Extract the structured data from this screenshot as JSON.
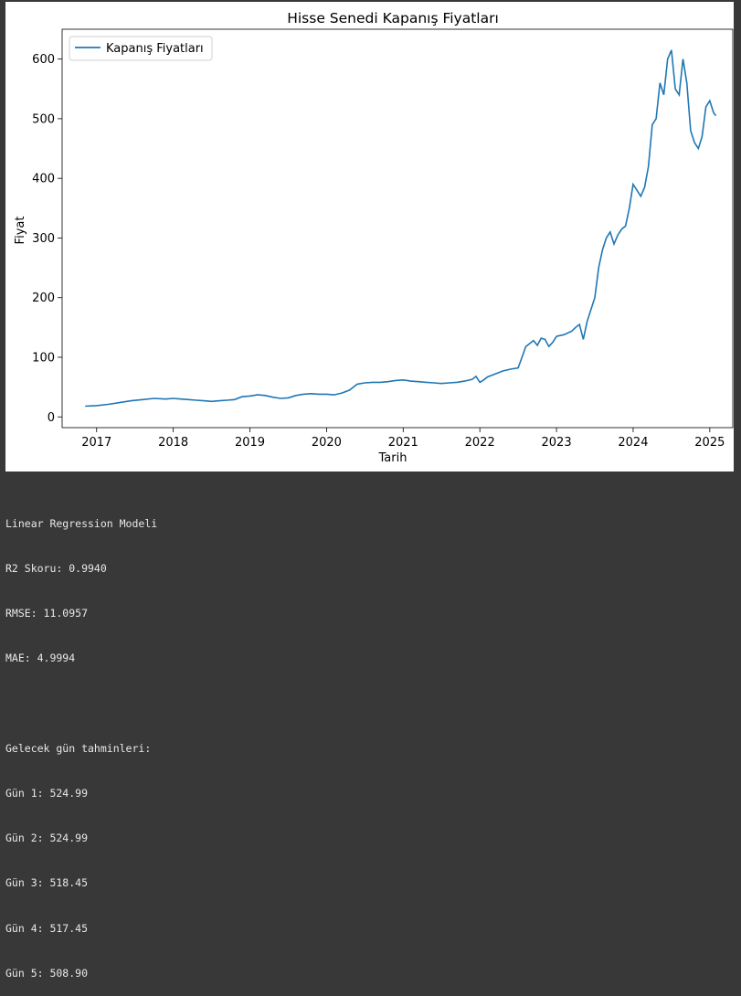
{
  "chart_data": {
    "type": "line",
    "title": "Hisse Senedi Kapanış Fiyatları",
    "xlabel": "Tarih",
    "ylabel": "Fiyat",
    "xlim": [
      2016.55,
      2025.3
    ],
    "ylim": [
      -18,
      650
    ],
    "x_ticks": [
      2017,
      2018,
      2019,
      2020,
      2021,
      2022,
      2023,
      2024,
      2025
    ],
    "x_tick_labels": [
      "2017",
      "2018",
      "2019",
      "2020",
      "2021",
      "2022",
      "2023",
      "2024",
      "2025"
    ],
    "y_ticks": [
      0,
      100,
      200,
      300,
      400,
      500,
      600
    ],
    "y_tick_labels": [
      "0",
      "100",
      "200",
      "300",
      "400",
      "500",
      "600"
    ],
    "legend_position": "upper left",
    "color": "#1f77b4",
    "series": [
      {
        "name": "Kapanış Fiyatları",
        "x": [
          2016.85,
          2017.0,
          2017.15,
          2017.3,
          2017.45,
          2017.6,
          2017.75,
          2017.9,
          2018.0,
          2018.1,
          2018.2,
          2018.3,
          2018.4,
          2018.5,
          2018.6,
          2018.7,
          2018.8,
          2018.9,
          2019.0,
          2019.1,
          2019.2,
          2019.3,
          2019.4,
          2019.5,
          2019.6,
          2019.7,
          2019.8,
          2019.9,
          2020.0,
          2020.1,
          2020.2,
          2020.3,
          2020.4,
          2020.5,
          2020.6,
          2020.7,
          2020.8,
          2020.9,
          2021.0,
          2021.1,
          2021.2,
          2021.3,
          2021.4,
          2021.5,
          2021.6,
          2021.7,
          2021.8,
          2021.9,
          2021.95,
          2022.0,
          2022.05,
          2022.1,
          2022.2,
          2022.3,
          2022.4,
          2022.5,
          2022.55,
          2022.6,
          2022.7,
          2022.75,
          2022.8,
          2022.85,
          2022.9,
          2022.95,
          2023.0,
          2023.1,
          2023.2,
          2023.25,
          2023.3,
          2023.35,
          2023.4,
          2023.45,
          2023.5,
          2023.55,
          2023.6,
          2023.65,
          2023.7,
          2023.75,
          2023.8,
          2023.85,
          2023.9,
          2023.95,
          2024.0,
          2024.05,
          2024.1,
          2024.15,
          2024.2,
          2024.25,
          2024.3,
          2024.35,
          2024.4,
          2024.45,
          2024.5,
          2024.55,
          2024.6,
          2024.65,
          2024.7,
          2024.75,
          2024.8,
          2024.85,
          2024.9,
          2024.95,
          2025.0,
          2025.05,
          2025.08
        ],
        "y": [
          18,
          19,
          21,
          24,
          27,
          29,
          31,
          30,
          31,
          30,
          29,
          28,
          27,
          26,
          27,
          28,
          29,
          34,
          35,
          37,
          36,
          33,
          31,
          32,
          36,
          38,
          39,
          38,
          38,
          37,
          40,
          45,
          55,
          57,
          58,
          58,
          59,
          61,
          62,
          60,
          59,
          58,
          57,
          56,
          57,
          58,
          60,
          63,
          68,
          58,
          62,
          67,
          72,
          77,
          80,
          82,
          100,
          118,
          128,
          120,
          132,
          130,
          118,
          125,
          135,
          138,
          144,
          150,
          155,
          130,
          160,
          180,
          200,
          250,
          280,
          300,
          310,
          290,
          305,
          315,
          320,
          350,
          390,
          380,
          370,
          385,
          420,
          490,
          500,
          560,
          540,
          600,
          615,
          550,
          540,
          600,
          560,
          480,
          460,
          450,
          470,
          520,
          530,
          510,
          505
        ]
      }
    ]
  },
  "output": {
    "lines": [
      "Linear Regression Modeli",
      "R2 Skoru: 0.9940",
      "RMSE: 11.0957",
      "MAE: 4.9994",
      "",
      "Gelecek gün tahminleri:",
      "Gün 1: 524.99",
      "Gün 2: 524.99",
      "Gün 3: 518.45",
      "Gün 4: 517.45",
      "Gün 5: 508.90"
    ]
  }
}
